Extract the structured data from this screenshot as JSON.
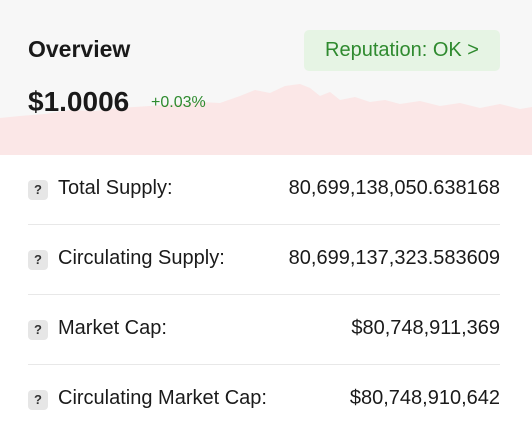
{
  "overview": {
    "title": "Overview",
    "price": "$1.0006",
    "change": "+0.03%",
    "reputation_button": "Reputation: OK >",
    "sparkline_color": "#f5d5d5"
  },
  "stats": [
    {
      "label": "Total Supply:",
      "value": "80,699,138,050.638168",
      "help_icon": "?"
    },
    {
      "label": "Circulating Supply:",
      "value": "80,699,137,323.583609",
      "help_icon": "?"
    },
    {
      "label": "Market Cap:",
      "value": "$80,748,911,369",
      "help_icon": "?"
    },
    {
      "label": "Circulating Market Cap:",
      "value": "$80,748,910,642",
      "help_icon": "?"
    }
  ]
}
